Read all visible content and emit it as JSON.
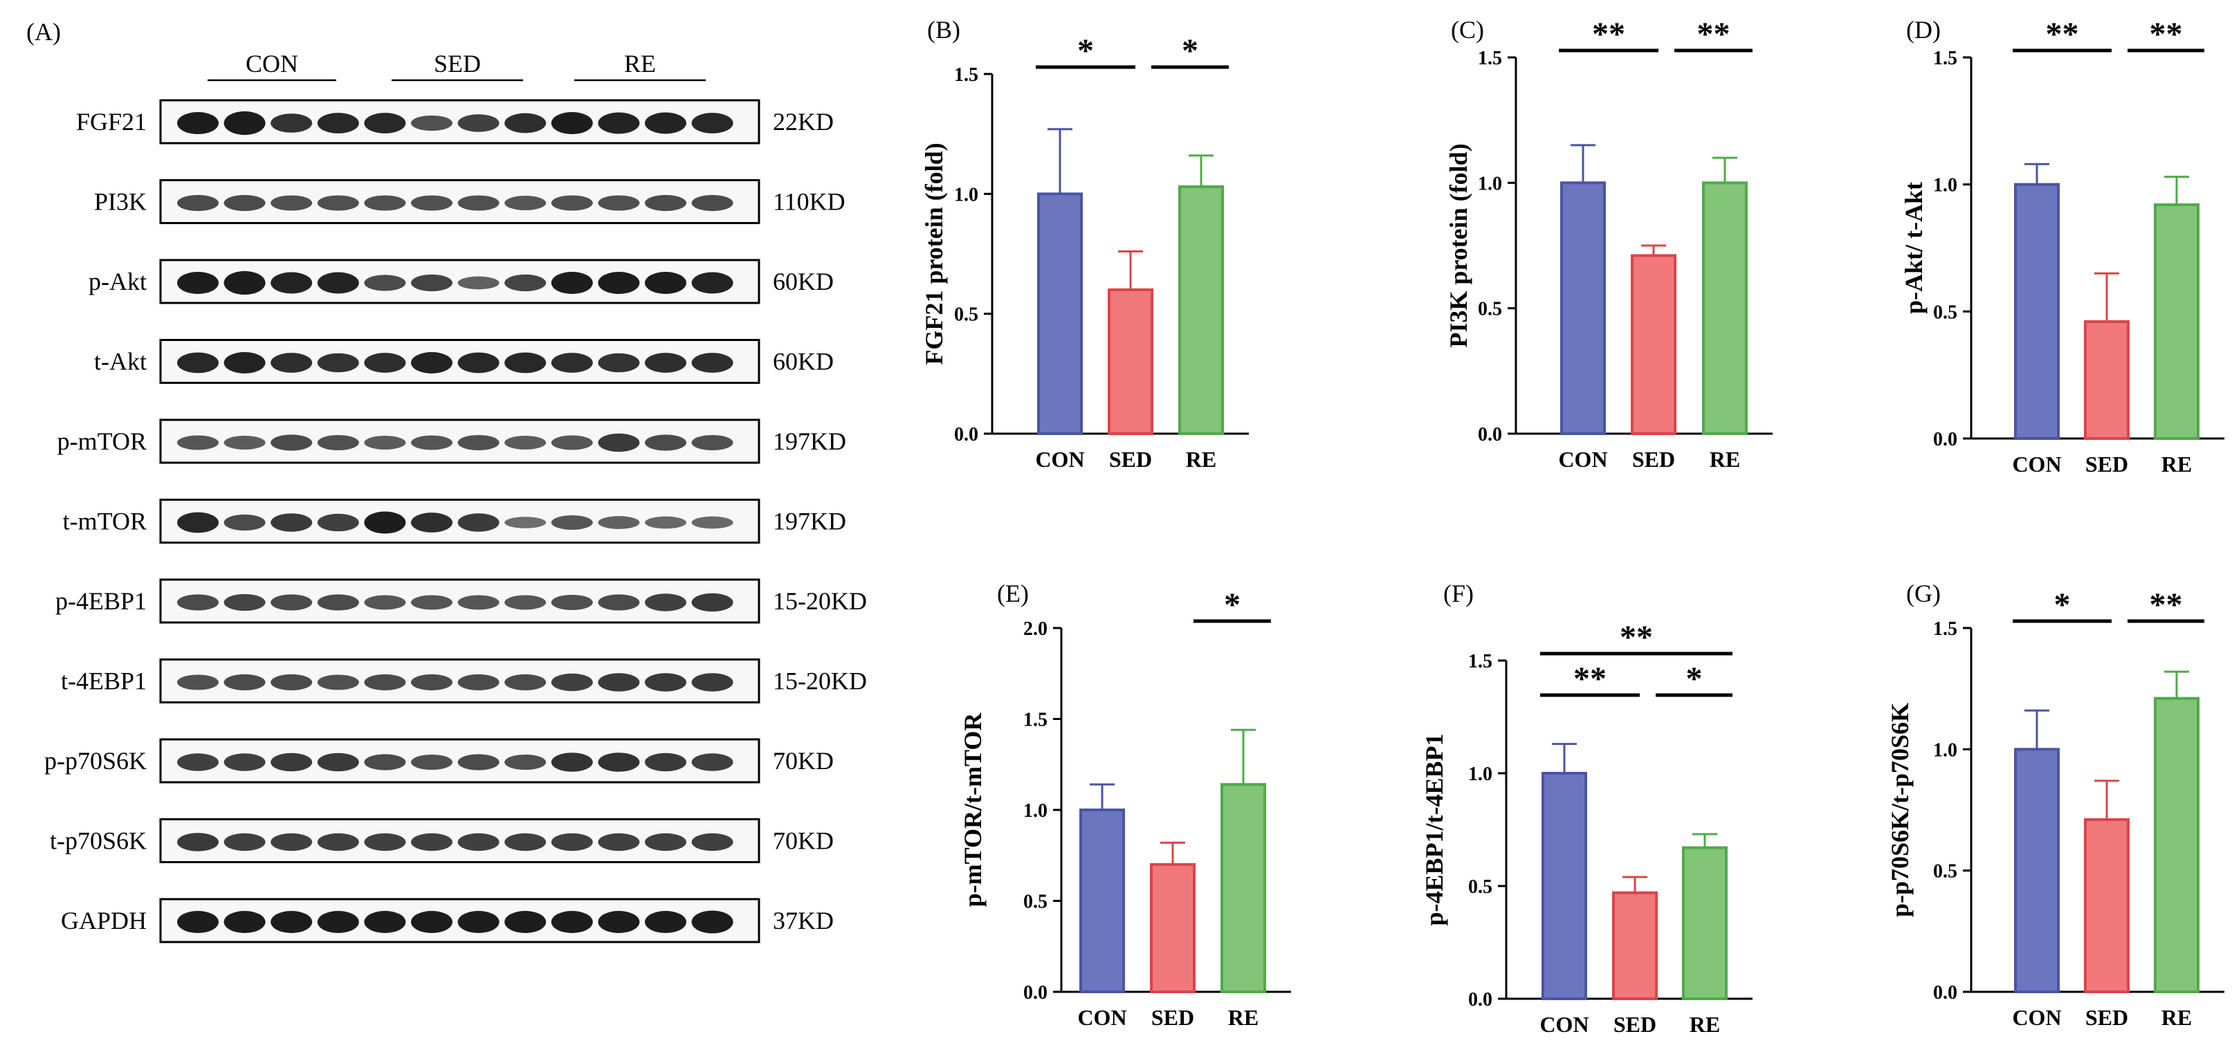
{
  "figure": {
    "colors": {
      "CON": "#6b76bf",
      "SED": "#f0787a",
      "RE": "#82c478",
      "CON_edge": "#4a55a2",
      "SED_edge": "#d9454a",
      "RE_edge": "#4fab48"
    },
    "blot": {
      "label": "(A)",
      "groups": [
        "CON",
        "SED",
        "RE"
      ],
      "rows": [
        {
          "protein": "FGF21",
          "kd": "22KD"
        },
        {
          "protein": "PI3K",
          "kd": "110KD"
        },
        {
          "protein": "p-Akt",
          "kd": "60KD"
        },
        {
          "protein": "t-Akt",
          "kd": "60KD"
        },
        {
          "protein": "p-mTOR",
          "kd": "197KD"
        },
        {
          "protein": "t-mTOR",
          "kd": "197KD"
        },
        {
          "protein": "p-4EBP1",
          "kd": "15-20KD"
        },
        {
          "protein": "t-4EBP1",
          "kd": "15-20KD"
        },
        {
          "protein": "p-p70S6K",
          "kd": "70KD"
        },
        {
          "protein": "t-p70S6K",
          "kd": "70KD"
        },
        {
          "protein": "GAPDH",
          "kd": "37KD"
        }
      ]
    }
  },
  "chart_data": [
    {
      "panel": "(B)",
      "type": "bar",
      "categories": [
        "CON",
        "SED",
        "RE"
      ],
      "values": [
        1.0,
        0.6,
        1.03
      ],
      "errors": [
        0.27,
        0.16,
        0.13
      ],
      "ylabel": "FGF21 protein (fold)",
      "ylim": [
        0,
        1.5
      ],
      "yticks": [
        "0.0",
        "0.5",
        "1.0",
        "1.5"
      ],
      "significance": [
        {
          "from": "CON",
          "to": "SED",
          "label": "*"
        },
        {
          "from": "SED",
          "to": "RE",
          "label": "*"
        }
      ]
    },
    {
      "panel": "(C)",
      "type": "bar",
      "categories": [
        "CON",
        "SED",
        "RE"
      ],
      "values": [
        1.0,
        0.71,
        1.0
      ],
      "errors": [
        0.15,
        0.04,
        0.1
      ],
      "ylabel": "PI3K protein (fold)",
      "ylim": [
        0,
        1.5
      ],
      "yticks": [
        "0.0",
        "0.5",
        "1.0",
        "1.5"
      ],
      "significance": [
        {
          "from": "CON",
          "to": "SED",
          "label": "**"
        },
        {
          "from": "SED",
          "to": "RE",
          "label": "**"
        }
      ]
    },
    {
      "panel": "(D)",
      "type": "bar",
      "categories": [
        "CON",
        "SED",
        "RE"
      ],
      "values": [
        1.0,
        0.46,
        0.92
      ],
      "errors": [
        0.08,
        0.19,
        0.11
      ],
      "ylabel": "p-Akt/ t-Akt",
      "ylim": [
        0,
        1.5
      ],
      "yticks": [
        "0.0",
        "0.5",
        "1.0",
        "1.5"
      ],
      "significance": [
        {
          "from": "CON",
          "to": "SED",
          "label": "**"
        },
        {
          "from": "SED",
          "to": "RE",
          "label": "**"
        }
      ]
    },
    {
      "panel": "(E)",
      "type": "bar",
      "categories": [
        "CON",
        "SED",
        "RE"
      ],
      "values": [
        1.0,
        0.7,
        1.14
      ],
      "errors": [
        0.14,
        0.12,
        0.3
      ],
      "ylabel": "p-mTOR/t-mTOR",
      "ylim": [
        0,
        2.0
      ],
      "yticks": [
        "0.0",
        "0.5",
        "1.0",
        "1.5",
        "2.0"
      ],
      "significance": [
        {
          "from": "SED",
          "to": "RE",
          "label": "*"
        }
      ]
    },
    {
      "panel": "(F)",
      "type": "bar",
      "categories": [
        "CON",
        "SED",
        "RE"
      ],
      "values": [
        1.0,
        0.47,
        0.67
      ],
      "errors": [
        0.13,
        0.07,
        0.06
      ],
      "ylabel": "p-4EBP1/t-4EBP1",
      "ylim": [
        0,
        1.5
      ],
      "yticks": [
        "0.0",
        "0.5",
        "1.0",
        "1.5"
      ],
      "significance": [
        {
          "from": "CON",
          "to": "SED",
          "label": "**"
        },
        {
          "from": "SED",
          "to": "RE",
          "label": "*"
        },
        {
          "from": "CON",
          "to": "RE",
          "label": "**"
        }
      ]
    },
    {
      "panel": "(G)",
      "type": "bar",
      "categories": [
        "CON",
        "SED",
        "RE"
      ],
      "values": [
        1.0,
        0.71,
        1.21
      ],
      "errors": [
        0.16,
        0.16,
        0.11
      ],
      "ylabel": "p-p70S6K/t-p70S6K",
      "ylim": [
        0,
        1.5
      ],
      "yticks": [
        "0.0",
        "0.5",
        "1.0",
        "1.5"
      ],
      "significance": [
        {
          "from": "CON",
          "to": "SED",
          "label": "*"
        },
        {
          "from": "SED",
          "to": "RE",
          "label": "**"
        }
      ]
    }
  ]
}
